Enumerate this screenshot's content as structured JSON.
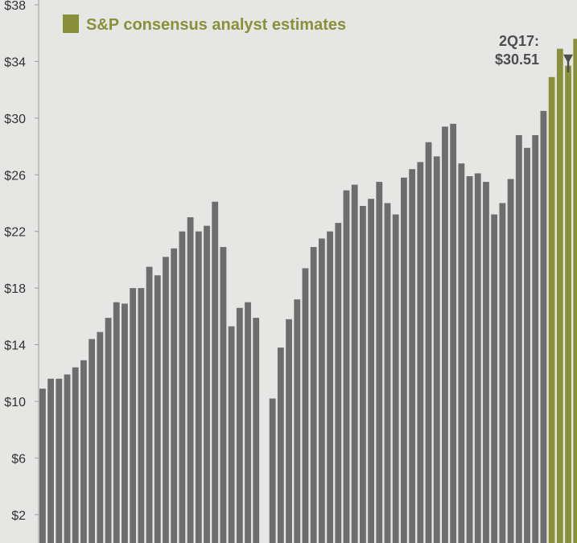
{
  "chart_data": {
    "type": "bar",
    "ylim": [
      0,
      38
    ],
    "y_ticks": [
      "$2",
      "$6",
      "$10",
      "$14",
      "$18",
      "$22",
      "$26",
      "$30",
      "$34",
      "$38"
    ],
    "y_tick_values": [
      2,
      6,
      10,
      14,
      18,
      22,
      26,
      30,
      34,
      38
    ],
    "grid": false,
    "legend": {
      "label": "S&P consensus analyst estimates",
      "placement": "top-left"
    },
    "annotation": {
      "line1": "2Q17:",
      "line2": "$30.51",
      "target_index": 64
    },
    "colors": {
      "actual": "#6d6d6d",
      "estimate": "#88913a",
      "background": "#e6e6e5",
      "annotation": "#4d4d4d"
    },
    "series": [
      {
        "kind": "actual",
        "values": [
          10.9,
          11.6,
          11.6,
          11.9,
          12.4,
          12.9,
          14.4,
          14.9,
          15.9,
          17.0,
          16.9,
          18.0,
          18.0,
          19.5,
          18.9,
          20.2,
          20.8,
          22.0,
          23.0,
          22.0,
          22.4,
          24.1,
          20.9,
          15.3,
          16.6,
          17.0,
          15.9
        ]
      },
      {
        "kind": "gap",
        "values": [
          null
        ]
      },
      {
        "kind": "actual",
        "values": [
          10.2,
          13.8,
          15.8,
          17.2,
          19.4,
          20.9,
          21.5,
          22.0,
          22.6,
          24.9,
          25.3,
          23.8,
          24.3,
          25.5,
          24.0,
          23.2,
          25.8,
          26.4,
          26.9,
          28.3,
          27.3,
          29.4,
          29.6,
          26.8,
          25.9,
          26.1,
          25.5,
          23.2,
          24.0,
          25.7,
          28.8,
          27.9,
          28.8,
          30.51
        ]
      },
      {
        "kind": "estimate",
        "values": [
          32.9,
          34.9,
          33.7,
          35.6
        ]
      }
    ]
  }
}
